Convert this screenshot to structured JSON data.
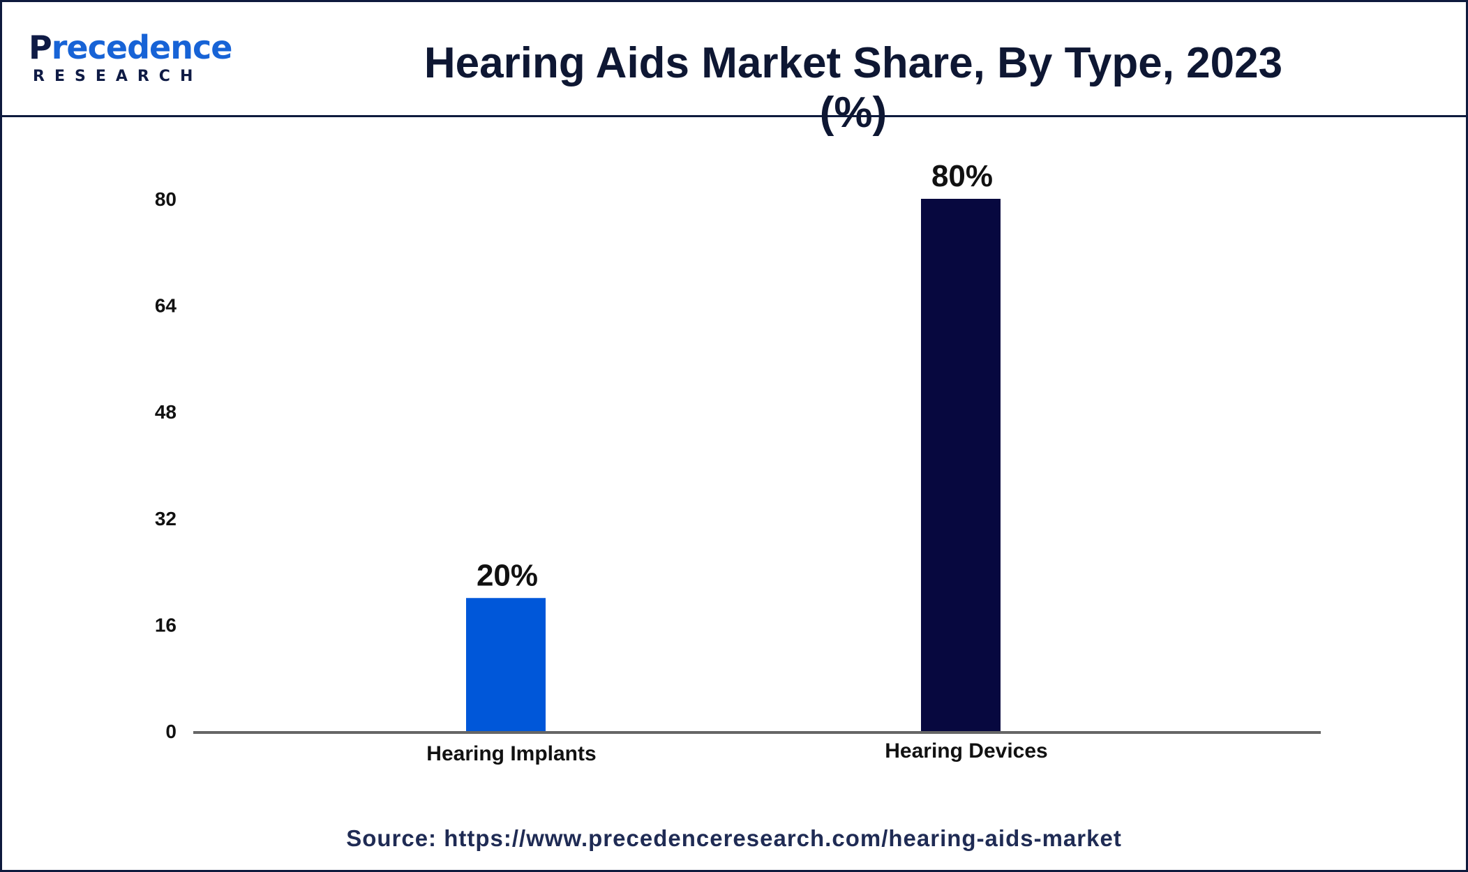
{
  "brand": {
    "name_top": "Precedence",
    "name_bottom": "RESEARCH"
  },
  "chart_data": {
    "type": "bar",
    "title": "Hearing Aids Market Share, By Type, 2023 (%)",
    "categories": [
      "Hearing Implants",
      "Hearing Devices"
    ],
    "values": [
      20,
      80
    ],
    "data_labels": [
      "20%",
      "80%"
    ],
    "colors": [
      "#0057d9",
      "#07083f"
    ],
    "yticks": [
      "0",
      "16",
      "32",
      "48",
      "64",
      "80"
    ],
    "ylim": [
      0,
      80
    ],
    "xlabel": "",
    "ylabel": "",
    "grid": false
  },
  "source": "Source: https://www.precedenceresearch.com/hearing-aids-market",
  "colors": {
    "frame": "#0e1a3d",
    "title": "#0e1733",
    "axis": "#666666"
  }
}
